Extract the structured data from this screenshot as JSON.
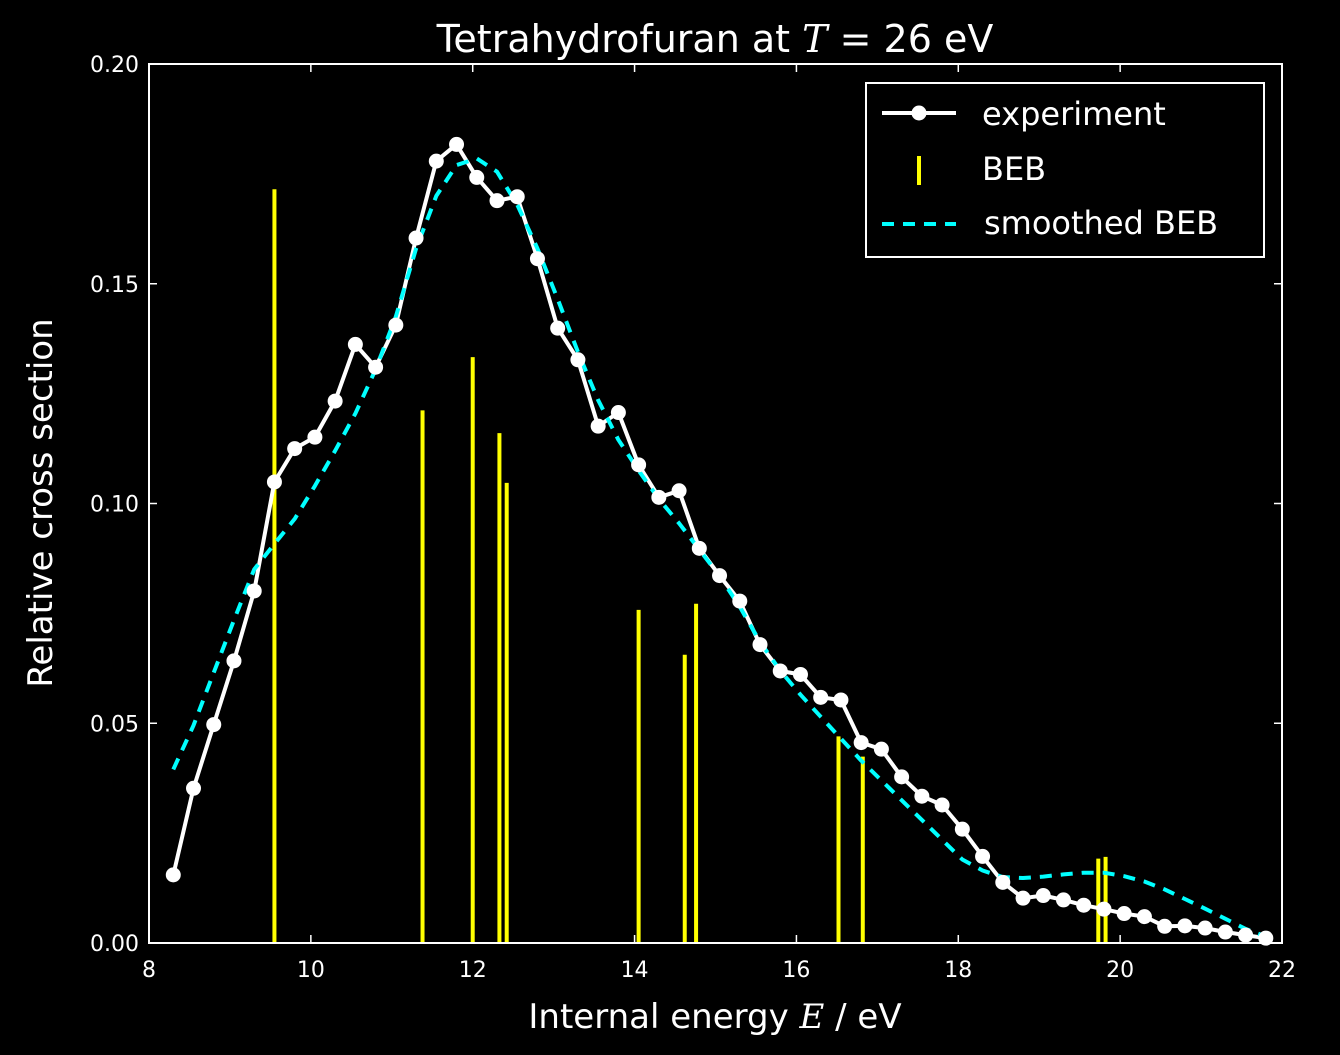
{
  "chart_data": {
    "type": "line",
    "title": "Tetrahydrofuran at T = 26 eV",
    "title_parts": {
      "prefix": "Tetrahydrofuran at ",
      "var": "T",
      "suffix": " = 26 eV"
    },
    "xlabel": "Internal energy E / eV",
    "xlabel_parts": {
      "prefix": "Internal energy ",
      "var": "E",
      "suffix": " / eV"
    },
    "ylabel": "Relative cross section",
    "xlim": [
      8,
      22
    ],
    "ylim": [
      0,
      0.2
    ],
    "xticks": [
      8,
      10,
      12,
      14,
      16,
      18,
      20,
      22
    ],
    "xtick_labels": [
      "8",
      "10",
      "12",
      "14",
      "16",
      "18",
      "20",
      "22"
    ],
    "yticks": [
      0,
      0.05,
      0.1,
      0.15,
      0.2
    ],
    "ytick_labels": [
      "0.00",
      "0.05",
      "0.10",
      "0.15",
      "0.20"
    ],
    "grid": false,
    "legend_position": "top-right",
    "colors": {
      "background": "#000000",
      "axes": "#ffffff",
      "experiment": "#ffffff",
      "beb": "#ffff00",
      "smoothed": "#00ffff"
    },
    "series": [
      {
        "name": "experiment",
        "style": "line-marker",
        "x": [
          8.3,
          8.55,
          8.8,
          9.05,
          9.3,
          9.55,
          9.8,
          10.05,
          10.3,
          10.55,
          10.8,
          11.05,
          11.3,
          11.55,
          11.8,
          12.05,
          12.3,
          12.55,
          12.8,
          13.05,
          13.3,
          13.55,
          13.8,
          14.05,
          14.3,
          14.55,
          14.8,
          15.05,
          15.3,
          15.55,
          15.8,
          16.05,
          16.3,
          16.55,
          16.8,
          17.05,
          17.3,
          17.55,
          17.8,
          18.05,
          18.3,
          18.55,
          18.8,
          19.05,
          19.3,
          19.55,
          19.8,
          20.05,
          20.3,
          20.55,
          20.8,
          21.05,
          21.3,
          21.55,
          21.8
        ],
        "y": [
          0.0155,
          0.0352,
          0.0497,
          0.0642,
          0.0801,
          0.1049,
          0.1125,
          0.1151,
          0.1233,
          0.1362,
          0.131,
          0.1406,
          0.1604,
          0.1779,
          0.1817,
          0.1742,
          0.1689,
          0.1698,
          0.1557,
          0.1399,
          0.1327,
          0.1176,
          0.1207,
          0.1088,
          0.1014,
          0.1029,
          0.0898,
          0.0836,
          0.0778,
          0.0679,
          0.0619,
          0.0611,
          0.0559,
          0.0553,
          0.0456,
          0.0441,
          0.0378,
          0.0334,
          0.0314,
          0.0259,
          0.0197,
          0.0138,
          0.0102,
          0.0108,
          0.0098,
          0.0086,
          0.0077,
          0.0067,
          0.006,
          0.0038,
          0.0039,
          0.0034,
          0.0025,
          0.0018,
          0.0011
        ]
      },
      {
        "name": "BEB",
        "style": "stick",
        "x": [
          9.55,
          11.38,
          12.0,
          12.33,
          12.42,
          14.05,
          14.62,
          14.76,
          16.52,
          16.82,
          19.73,
          19.82
        ],
        "y": [
          0.1715,
          0.1212,
          0.1333,
          0.116,
          0.1047,
          0.0758,
          0.0656,
          0.0772,
          0.047,
          0.0424,
          0.0192,
          0.0196
        ]
      },
      {
        "name": "smoothed BEB",
        "style": "dashed",
        "x": [
          8.3,
          8.55,
          8.8,
          9.05,
          9.3,
          9.55,
          9.8,
          10.05,
          10.3,
          10.55,
          10.8,
          11.05,
          11.3,
          11.55,
          11.8,
          12.05,
          12.3,
          12.55,
          12.8,
          13.05,
          13.3,
          13.55,
          13.8,
          14.05,
          14.3,
          14.55,
          14.8,
          15.05,
          15.3,
          15.55,
          15.8,
          16.05,
          16.3,
          16.55,
          16.8,
          17.05,
          17.3,
          17.55,
          17.8,
          18.05,
          18.3,
          18.55,
          18.8,
          19.05,
          19.3,
          19.55,
          19.8,
          20.05,
          20.3,
          20.55,
          20.8,
          21.05,
          21.3,
          21.55,
          21.8
        ],
        "y": [
          0.0395,
          0.0495,
          0.0615,
          0.0735,
          0.085,
          0.0908,
          0.0965,
          0.104,
          0.112,
          0.1205,
          0.1305,
          0.1425,
          0.158,
          0.17,
          0.177,
          0.1785,
          0.1755,
          0.168,
          0.158,
          0.1465,
          0.1345,
          0.1235,
          0.1145,
          0.1075,
          0.101,
          0.0955,
          0.0895,
          0.0835,
          0.0765,
          0.0685,
          0.062,
          0.0565,
          0.0515,
          0.0465,
          0.0415,
          0.037,
          0.0325,
          0.028,
          0.0235,
          0.019,
          0.0165,
          0.015,
          0.0148,
          0.0151,
          0.0156,
          0.016,
          0.016,
          0.0152,
          0.014,
          0.0122,
          0.01,
          0.0078,
          0.0055,
          0.0032,
          0.0015
        ]
      }
    ],
    "legend": [
      {
        "label": "experiment",
        "style": "line-marker"
      },
      {
        "label": "BEB",
        "style": "stick"
      },
      {
        "label": "smoothed BEB",
        "style": "dashed"
      }
    ]
  }
}
